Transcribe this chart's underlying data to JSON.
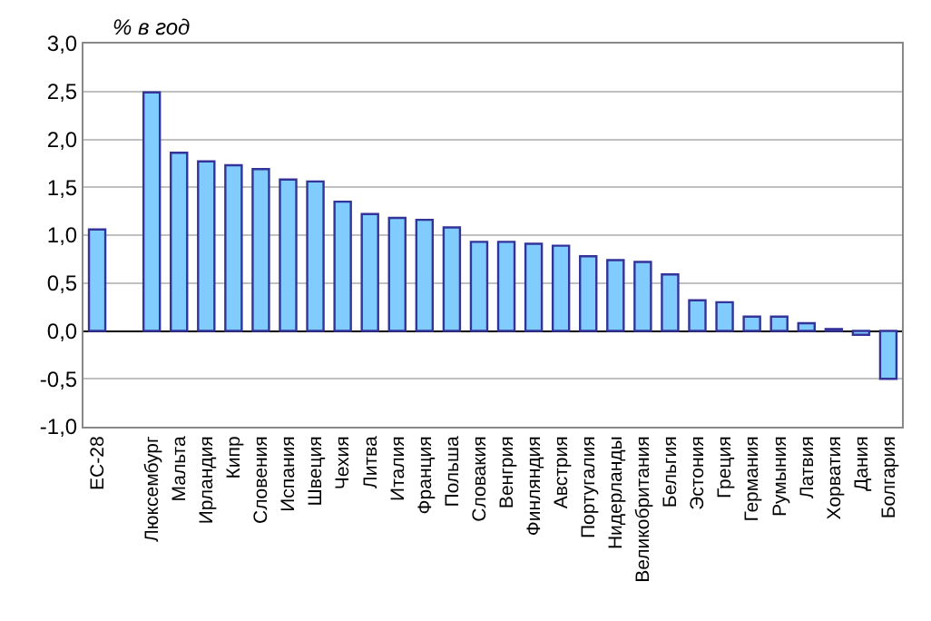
{
  "chart_data": {
    "type": "bar",
    "ylabel": "% в год",
    "categories": [
      "ЕС-28",
      null,
      "Люксембург",
      "Мальта",
      "Ирландия",
      "Кипр",
      "Словения",
      "Испания",
      "Швеция",
      "Чехия",
      "Литва",
      "Италия",
      "Франция",
      "Польша",
      "Словакия",
      "Венгрия",
      "Финляндия",
      "Австрия",
      "Португалия",
      "Нидерланды",
      "Великобритания",
      "Бельгия",
      "Эстония",
      "Греция",
      "Германия",
      "Румыния",
      "Латвия",
      "Хорватия",
      "Дания",
      "Болгария"
    ],
    "values": [
      1.06,
      null,
      2.49,
      1.86,
      1.77,
      1.73,
      1.69,
      1.58,
      1.56,
      1.35,
      1.22,
      1.18,
      1.16,
      1.08,
      0.93,
      0.93,
      0.91,
      0.89,
      0.78,
      0.74,
      0.72,
      0.59,
      0.32,
      0.3,
      0.15,
      0.15,
      0.08,
      0.02,
      -0.04,
      -0.5
    ],
    "color": "#80ccff",
    "ylim": [
      -1.0,
      3.0
    ],
    "yticks": [
      {
        "value": -1.0,
        "label": "-1,0"
      },
      {
        "value": -0.5,
        "label": "-0,5"
      },
      {
        "value": 0.0,
        "label": "0,0"
      },
      {
        "value": 0.5,
        "label": "0,5"
      },
      {
        "value": 1.0,
        "label": "1,0"
      },
      {
        "value": 1.5,
        "label": "1,5"
      },
      {
        "value": 2.0,
        "label": "2,0"
      },
      {
        "value": 2.5,
        "label": "2,5"
      },
      {
        "value": 3.0,
        "label": "3,0"
      }
    ],
    "grid": "y"
  }
}
